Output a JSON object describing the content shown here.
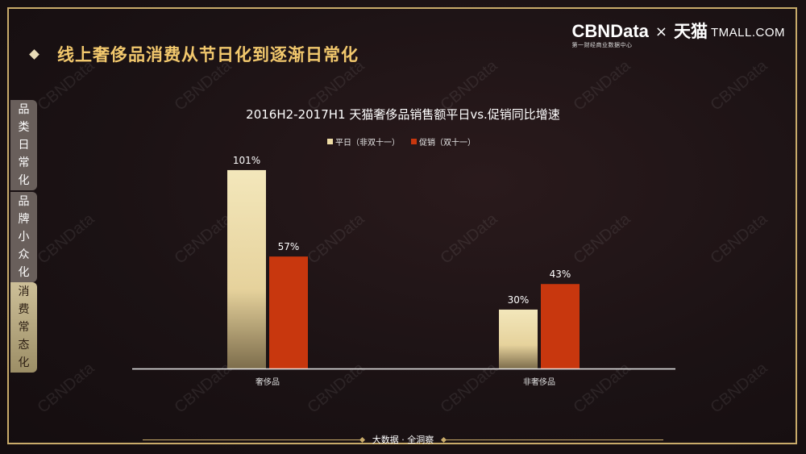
{
  "page_title": "线上奢侈品消费从节日化到逐渐日常化",
  "brand": {
    "cbn_name": "CBNData",
    "cbn_sub": "第一财经商业数据中心",
    "x": "×",
    "tmall_cn": "天猫",
    "tmall_en": "TMALL.COM"
  },
  "side_tabs": [
    {
      "label": "品类日常化",
      "active": false
    },
    {
      "label": "品牌小众化",
      "active": false
    },
    {
      "label": "消费常态化",
      "active": true
    }
  ],
  "watermark": "CBNData",
  "footer": {
    "text": "大数据 · 全洞察"
  },
  "colors": {
    "gold": "#f2c86d",
    "frame": "#c9ab6a",
    "series1": "#eedca5",
    "series2": "#c8370e"
  },
  "chart_data": {
    "type": "bar",
    "title": "2016H2-2017H1  天猫奢侈品销售额平日vs.促销同比增速",
    "categories": [
      "奢侈品",
      "非奢侈品"
    ],
    "series": [
      {
        "name": "平日（非双十一）",
        "values": [
          101,
          30
        ],
        "labels": [
          "101%",
          "30%"
        ],
        "color": "#eedca5"
      },
      {
        "name": "促销（双十一）",
        "values": [
          57,
          43
        ],
        "labels": [
          "57%",
          "43%"
        ],
        "color": "#c8370e"
      }
    ],
    "ylim": [
      0,
      110
    ],
    "legend_position": "top-center",
    "grid": false
  }
}
